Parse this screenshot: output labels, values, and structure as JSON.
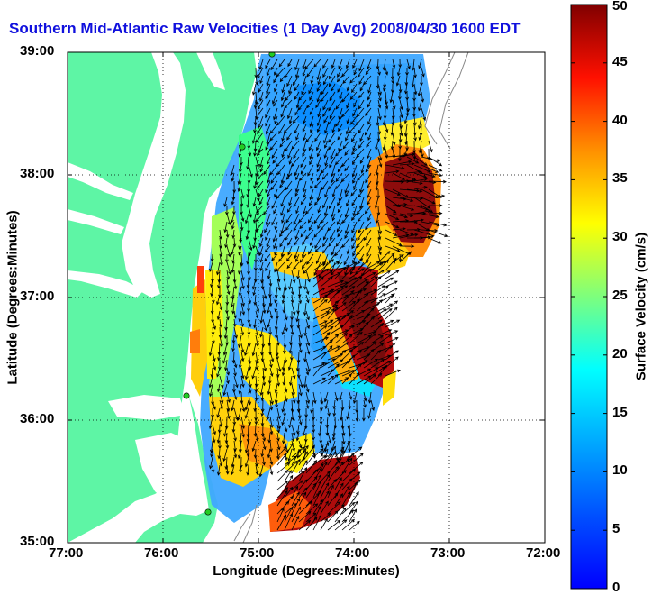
{
  "title": "Southern Mid-Atlantic Raw Velocities (1 Day Avg) 2008/04/30 1600 EDT",
  "x_axis": {
    "label": "Longitude (Degrees:Minutes)",
    "ticks": [
      "77:00",
      "76:00",
      "75:00",
      "74:00",
      "73:00",
      "72:00"
    ],
    "range": [
      -77,
      -72
    ]
  },
  "y_axis": {
    "label": "Latitude (Degrees:Minutes)",
    "ticks": [
      "39:00",
      "38:00",
      "37:00",
      "36:00",
      "35:00"
    ],
    "range": [
      35,
      39
    ]
  },
  "colorbar": {
    "label": "Surface Velocity (cm/s)",
    "ticks": [
      "0",
      "5",
      "10",
      "15",
      "20",
      "25",
      "30",
      "35",
      "40",
      "45",
      "50"
    ],
    "range": [
      0,
      50
    ],
    "colormap": "jet"
  },
  "colors": {
    "land": "#5ef5a5",
    "water_background": "#ffffff",
    "title": "#1010dd",
    "arrows": "#000000",
    "station_marker": "#22cc22"
  },
  "grid": "dotted"
}
